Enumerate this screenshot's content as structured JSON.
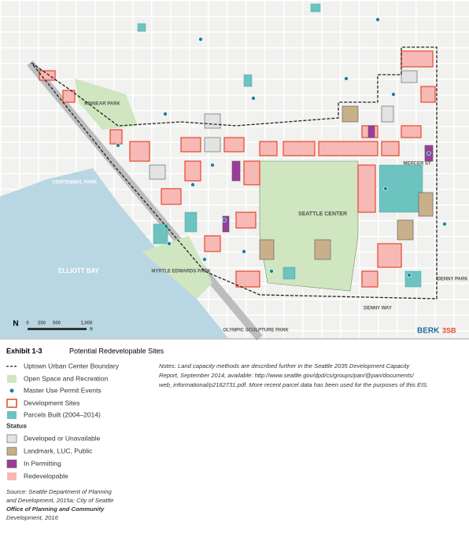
{
  "map": {
    "labels": {
      "bay": "ELLIOTT BAY",
      "center": "SEATTLE CENTER",
      "centennial": "CENTENNIAL PARK",
      "kinnear": "KINNEAR PARK",
      "myrtle": "MYRTLE EDWARDS PARK",
      "olympic": "OLYMPIC SCULPTURE PARK",
      "denny": "DENNY PARK",
      "mercer": "MERCER ST",
      "denny_way": "DENNY WAY"
    },
    "scale": {
      "labels": [
        "0",
        "250",
        "500",
        "1,000"
      ],
      "unit": "ft"
    },
    "north": "N",
    "logo": [
      "BERK",
      "3SB"
    ]
  },
  "caption": {
    "exhibit": "Exhibit 1-3",
    "title": "Potential Redevelopable Sites"
  },
  "legend": {
    "items": [
      "Uptown Urban Center Boundary",
      "Open Space and Recreation",
      "Master Use Permit Events",
      "Development Sites",
      "Parcels Built (2004–2014)"
    ],
    "status_title": "Status",
    "status_items": [
      "Developed or Unavailable",
      "Landmark, LUC, Public",
      "In Permitting",
      "Redevelopable"
    ]
  },
  "notes": [
    "Notes: Land capacity methods are described further in the Seattle 2035 Development Capacity",
    "Report, September 2014, available: http://www.seattle.gov/dpd/cs/groups/pan/@pan/documents/",
    "web_informational/p2182731.pdf. More recent parcel data has been used for the purposes of this EIS."
  ],
  "source": [
    "Source: Seattle Department of Planning",
    "and Development, 2015a; City of Seattle",
    "Office of Planning and Community",
    "Development, 2016"
  ]
}
